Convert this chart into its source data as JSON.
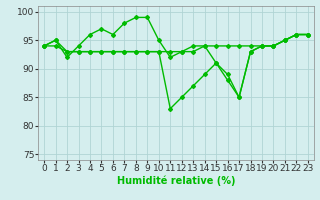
{
  "x": [
    0,
    1,
    2,
    3,
    4,
    5,
    6,
    7,
    8,
    9,
    10,
    11,
    12,
    13,
    14,
    15,
    16,
    17,
    18,
    19,
    20,
    21,
    22,
    23
  ],
  "line1": [
    94,
    95,
    92,
    94,
    96,
    97,
    96,
    98,
    99,
    99,
    95,
    92,
    93,
    94,
    94,
    91,
    88,
    85,
    93,
    94,
    94,
    95,
    96,
    96
  ],
  "line2": [
    94,
    95,
    93,
    93,
    93,
    93,
    93,
    93,
    93,
    93,
    93,
    83,
    85,
    87,
    89,
    91,
    89,
    85,
    93,
    94,
    94,
    95,
    96,
    96
  ],
  "line3": [
    94,
    94,
    93,
    93,
    93,
    93,
    93,
    93,
    93,
    93,
    93,
    93,
    93,
    93,
    94,
    94,
    94,
    94,
    94,
    94,
    94,
    95,
    96,
    96
  ],
  "line_color": "#00bb00",
  "bg_color": "#d5eeee",
  "grid_color": "#b0d4d4",
  "ylim": [
    74,
    101
  ],
  "xlim": [
    -0.5,
    23.5
  ],
  "yticks": [
    75,
    80,
    85,
    90,
    95,
    100
  ],
  "xticks": [
    0,
    1,
    2,
    3,
    4,
    5,
    6,
    7,
    8,
    9,
    10,
    11,
    12,
    13,
    14,
    15,
    16,
    17,
    18,
    19,
    20,
    21,
    22,
    23
  ],
  "xlabel": "Humidité relative (%)",
  "xlabel_fontsize": 7,
  "tick_fontsize": 6.5,
  "marker": "D",
  "markersize": 2,
  "linewidth": 1.0
}
